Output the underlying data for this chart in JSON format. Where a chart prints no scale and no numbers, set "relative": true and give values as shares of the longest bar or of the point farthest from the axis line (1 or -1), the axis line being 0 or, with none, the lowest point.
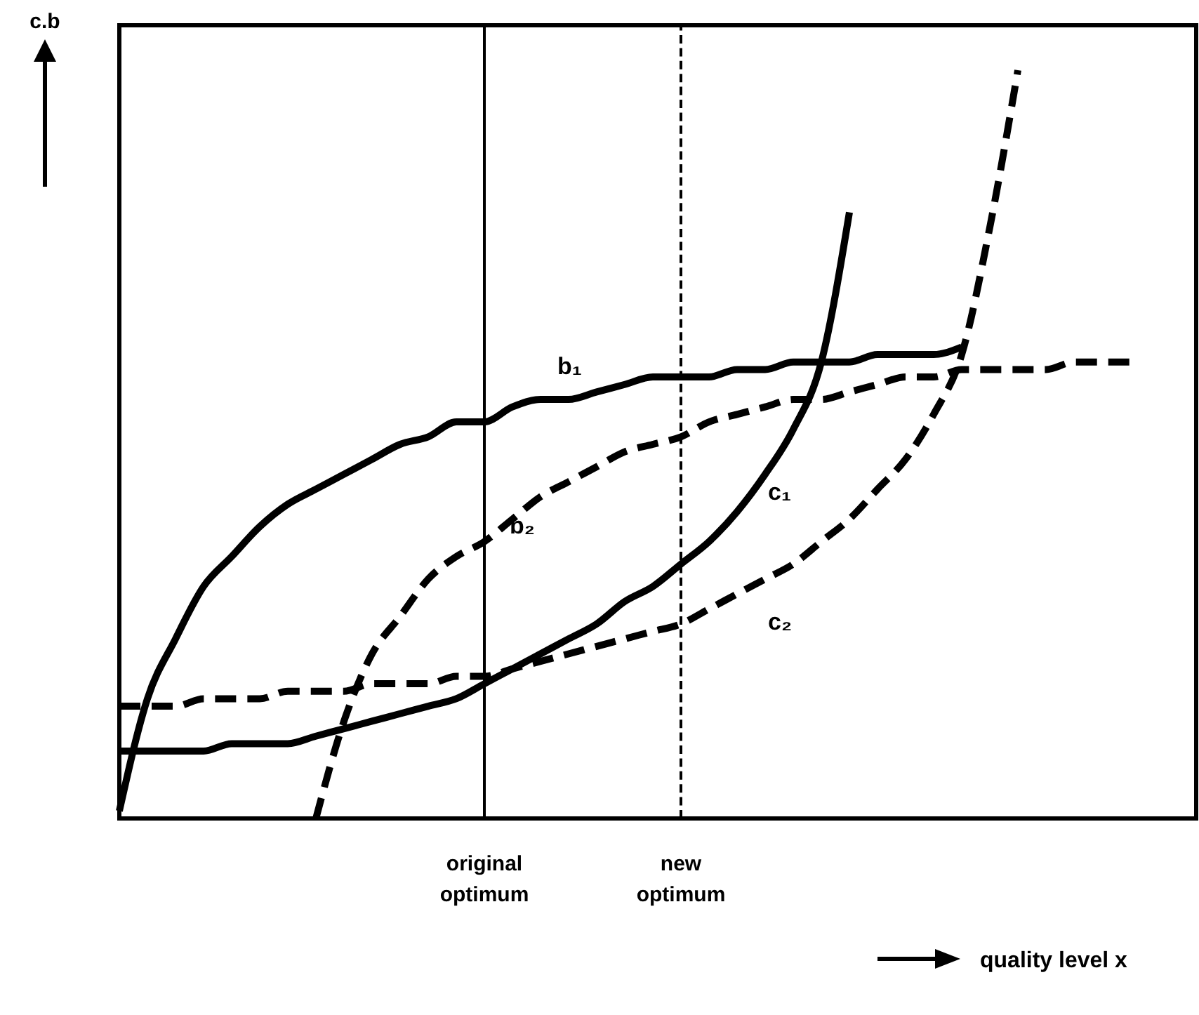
{
  "chart_data": {
    "type": "line",
    "relative": true,
    "ylabel": "c.b",
    "annotations": [
      "quality level x"
    ],
    "categories": [
      null,
      null,
      null,
      null,
      null,
      null,
      null,
      null,
      null,
      null,
      null,
      null,
      null,
      "original optimum",
      null,
      null,
      null,
      null,
      null,
      null,
      "new optimum",
      null,
      null,
      null,
      null,
      null,
      null,
      null,
      null,
      null,
      null,
      null,
      null,
      null,
      null,
      null,
      null,
      null
    ],
    "series": [
      {
        "name": "b₁",
        "color": "#000000",
        "line_style": "solid",
        "values": [
          0.01,
          0.16,
          0.24,
          0.31,
          0.35,
          0.39,
          0.42,
          0.44,
          0.46,
          0.48,
          0.5,
          0.51,
          0.53,
          0.53,
          0.55,
          0.56,
          0.56,
          0.57,
          0.58,
          0.59,
          0.59,
          0.59,
          0.6,
          0.6,
          0.61,
          0.61,
          0.61,
          0.62,
          0.62,
          0.62,
          0.63,
          null,
          null,
          null,
          null,
          null,
          null,
          null
        ]
      },
      {
        "name": "b₂",
        "color": "#000000",
        "line_style": "dashed",
        "values": [
          null,
          null,
          null,
          null,
          null,
          null,
          null,
          0.0,
          0.13,
          0.22,
          0.27,
          0.32,
          0.35,
          0.37,
          0.4,
          0.43,
          0.45,
          0.47,
          0.49,
          0.5,
          0.51,
          0.53,
          0.54,
          0.55,
          0.56,
          0.56,
          0.57,
          0.58,
          0.59,
          0.59,
          0.6,
          0.6,
          0.6,
          0.6,
          0.61,
          0.61,
          0.61,
          null
        ]
      },
      {
        "name": "c₁",
        "color": "#000000",
        "line_style": "solid",
        "values": [
          0.09,
          0.09,
          0.09,
          0.09,
          0.1,
          0.1,
          0.1,
          0.11,
          0.12,
          0.13,
          0.14,
          0.15,
          0.16,
          0.18,
          0.2,
          0.22,
          0.24,
          0.26,
          0.29,
          0.31,
          0.34,
          0.37,
          0.41,
          0.46,
          0.52,
          0.61,
          0.81,
          null,
          null,
          null,
          null,
          null,
          null,
          null,
          null,
          null,
          null,
          null
        ]
      },
      {
        "name": "c₂",
        "color": "#000000",
        "line_style": "dashed",
        "values": [
          0.15,
          0.15,
          0.15,
          0.16,
          0.16,
          0.16,
          0.17,
          0.17,
          0.17,
          0.18,
          0.18,
          0.18,
          0.19,
          0.19,
          0.2,
          0.21,
          0.22,
          0.23,
          0.24,
          0.25,
          0.26,
          0.28,
          0.3,
          0.32,
          0.34,
          0.37,
          0.4,
          0.44,
          0.48,
          0.54,
          0.62,
          0.79,
          1.0,
          null,
          null,
          null,
          null,
          null
        ]
      }
    ],
    "ref_lines": [
      {
        "axis": "x",
        "value": "original optimum",
        "line_style": "solid"
      },
      {
        "axis": "x",
        "value": "new optimum",
        "line_style": "dashed"
      }
    ]
  }
}
